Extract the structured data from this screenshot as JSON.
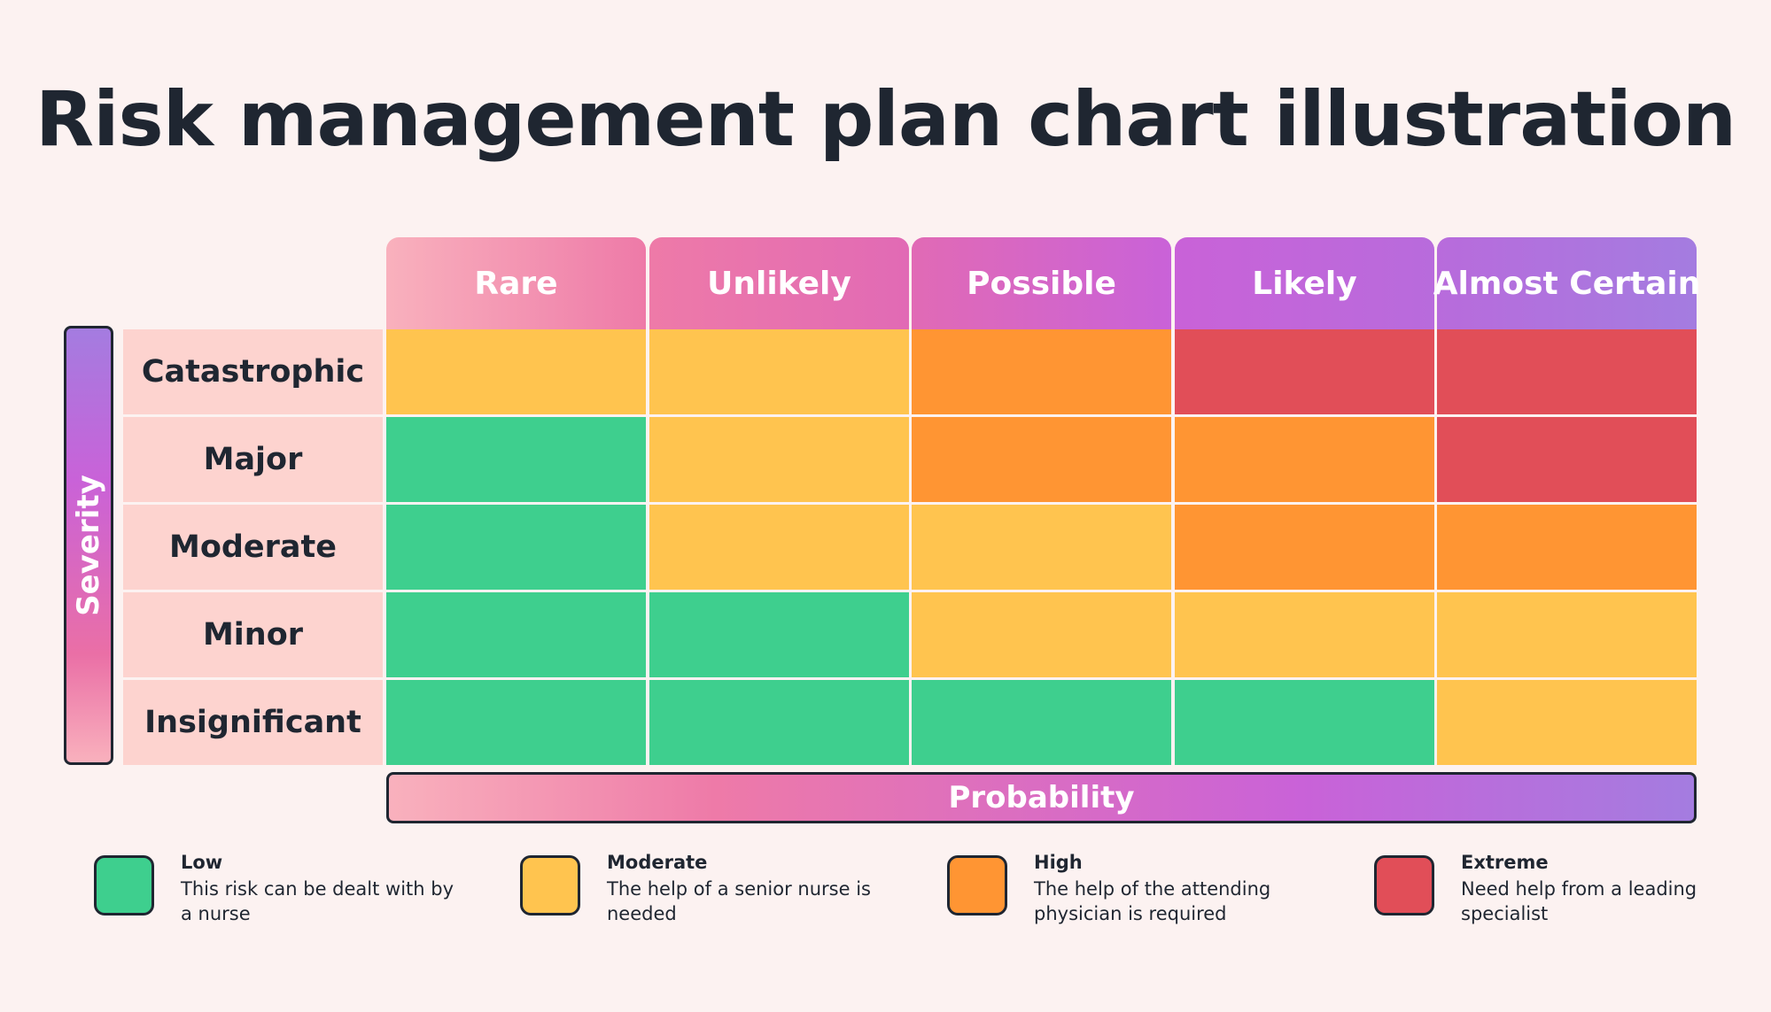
{
  "title": "Risk management plan chart illustration",
  "colors": {
    "background": "#fcf2f1",
    "low": "#3ecf8e",
    "moderate": "#ffc44f",
    "high": "#ff9533",
    "extreme": "#e14e58",
    "row_label_bg": "#fdd3cf",
    "header_gradient": [
      "#f9b1bd",
      "#ee7aa8",
      "#c962d8",
      "#a47ce0"
    ]
  },
  "chart_data": {
    "type": "heatmap",
    "title": "Risk management plan chart illustration",
    "xlabel": "Probability",
    "ylabel": "Severity",
    "columns": [
      "Rare",
      "Unlikely",
      "Possible",
      "Likely",
      "Almost Certain"
    ],
    "rows": [
      "Catastrophic",
      "Major",
      "Moderate",
      "Minor",
      "Insignificant"
    ],
    "levels": [
      "Low",
      "Moderate",
      "High",
      "Extreme"
    ],
    "grid": [
      [
        "Moderate",
        "Moderate",
        "High",
        "Extreme",
        "Extreme"
      ],
      [
        "Low",
        "Moderate",
        "High",
        "High",
        "Extreme"
      ],
      [
        "Low",
        "Moderate",
        "Moderate",
        "High",
        "High"
      ],
      [
        "Low",
        "Low",
        "Moderate",
        "Moderate",
        "Moderate"
      ],
      [
        "Low",
        "Low",
        "Low",
        "Low",
        "Moderate"
      ]
    ]
  },
  "legend": [
    {
      "level": "Low",
      "title": "Low",
      "description": "This risk can be dealt with by a nurse",
      "color": "#3ecf8e"
    },
    {
      "level": "Moderate",
      "title": "Moderate",
      "description": "The help of a senior nurse is needed",
      "color": "#ffc44f"
    },
    {
      "level": "High",
      "title": "High",
      "description": "The help of the attending physician is required",
      "color": "#ff9533"
    },
    {
      "level": "Extreme",
      "title": "Extreme",
      "description": "Need help from a leading specialist",
      "color": "#e14e58"
    }
  ]
}
